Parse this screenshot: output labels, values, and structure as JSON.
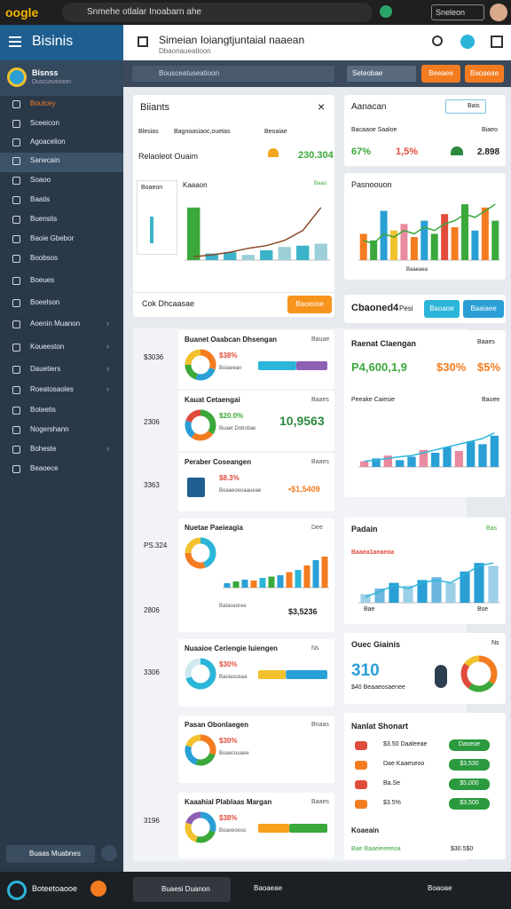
{
  "browser": {
    "logo": "oogle",
    "search": "Snmehe otlalar Inoabarn ahe",
    "button": "Sneleon"
  },
  "sidebar": {
    "title": "Bisinis",
    "user_name": "Bisnss",
    "user_sub": "Duscusvinoon",
    "items": [
      "Boulcey",
      "Sceeicon",
      "Agoacelion",
      "Sanecain",
      "Soaoo",
      "Baatis",
      "Buenslis",
      "Baoie Gbebor",
      "Boobsos",
      "Boeues",
      "Boeelson",
      "Aoenin Muanon",
      "Koueeston",
      "Dauetiers",
      "Roeatosaoles",
      "Boteetis",
      "Nogershann",
      "Boheste",
      "Beaoece"
    ],
    "footer": "Buaas Muabnes"
  },
  "header": {
    "title": "Simeian Ioiangtjuntaial naaean",
    "subtitle": "Dbaonaueatioon"
  },
  "filters": {
    "search": "Bousceatuseatioon",
    "select": "Seteobae",
    "buttons": [
      "Beeaee",
      "Baoaeae"
    ]
  },
  "main": {
    "title": "Biiants",
    "cols": [
      "Blesias",
      "Bagnoasiaoc,ouetas",
      "Beoaiae"
    ],
    "row_label": "Relaoleot Ouaim",
    "row_value": "230.304",
    "legend": "Boaeon",
    "chart_title": "Kaaaon",
    "chart_note": "Baao",
    "footer": "Cok Dhcaasae",
    "footer_button": "Baoeose",
    "chart": {
      "type": "bar-line",
      "ylim": [
        0,
        100
      ],
      "bars": [
        80,
        10,
        12,
        8,
        15,
        20,
        22,
        25
      ],
      "bar_colors": [
        "#3aa83a",
        "#3bb3c8",
        "#3bb3c8",
        "#9ccfd8",
        "#3bb3c8",
        "#9ccfd8",
        "#3bb3c8",
        "#9ccfd8"
      ],
      "line": [
        5,
        8,
        12,
        18,
        22,
        30,
        45,
        80
      ],
      "line_color": "#8b4a2a"
    }
  },
  "right_top": {
    "title": "Aanacan",
    "input": "Bais",
    "label": "Bacaaoe Saaloe",
    "sub": "Biaeo",
    "pct_a": "67%",
    "pct_b": "1,5%",
    "value": "2.898"
  },
  "right_chart": {
    "title": "Pasnoouon",
    "note": "Baaeaea",
    "chart": {
      "type": "bar-line",
      "ylim": [
        0,
        100
      ],
      "bars": [
        40,
        30,
        75,
        45,
        55,
        35,
        60,
        40,
        70,
        50,
        85,
        45,
        80,
        60
      ],
      "bar_colors": [
        "#f47c20",
        "#3aa83a",
        "#2a9fd6",
        "#f2c12e",
        "#e98aa0",
        "#f47c20",
        "#2a9fd6",
        "#3aa83a",
        "#e04c3c",
        "#f47c20",
        "#3aa83a",
        "#2a9fd6",
        "#f47c20",
        "#3aa83a"
      ],
      "line": [
        30,
        25,
        40,
        35,
        45,
        40,
        50,
        45,
        55,
        60,
        70,
        65,
        75,
        85
      ],
      "line_color": "#3aa83a"
    }
  },
  "right_bar": {
    "title": "Cbaoned4",
    "label": "Pesi",
    "buttons": [
      "Baoaoe",
      "Baaiaee"
    ]
  },
  "row_labels": [
    "$3036",
    "2306",
    "3363",
    "PS.324",
    "2806",
    "3306",
    "3196"
  ],
  "cards": [
    {
      "title": "Buanet Oaabcan Dhsengan",
      "tag": "Bauae",
      "pct": "$38%",
      "sub": "Boiaeean",
      "donut": {
        "type": "donut",
        "segments": [
          30,
          25,
          20,
          25
        ],
        "colors": [
          "#f47c20",
          "#2a9fd6",
          "#3aa83a",
          "#f2c12e"
        ]
      },
      "bar": {
        "type": "stack",
        "xlim": [
          0,
          100
        ],
        "segments": [
          55,
          45
        ],
        "colors": [
          "#2bb5d8",
          "#8e5fb5"
        ]
      }
    },
    {
      "title": "Kauat Cetaengai",
      "tag": "Baaes",
      "pct": "$20.0%",
      "sub": "Buaet Dobotiae",
      "value": "10,9563",
      "donut": {
        "type": "donut",
        "segments": [
          35,
          25,
          20,
          20
        ],
        "colors": [
          "#3aa83a",
          "#f47c20",
          "#2a9fd6",
          "#e04c3c"
        ]
      }
    },
    {
      "title": "Peraber Coseangen",
      "tag": "Baaes",
      "pct": "$8.3%",
      "sub": "Boaaeoeoaaueae",
      "value": "•$1,5409"
    },
    {
      "title": "Nuetae Paeieagia",
      "tag": "Dee",
      "sub": "Bataseoree",
      "value": "$3,5236",
      "donut": {
        "type": "donut",
        "segments": [
          45,
          30,
          25
        ],
        "colors": [
          "#2bb5d8",
          "#f47c20",
          "#f2c12e"
        ]
      },
      "chart": {
        "type": "bar-line",
        "ylim": [
          0,
          100
        ],
        "bars": [
          10,
          14,
          18,
          16,
          22,
          25,
          28,
          35,
          40,
          50,
          62,
          70
        ],
        "bar_colors": [
          "#2a9fd6",
          "#3aa83a",
          "#2a9fd6",
          "#f47c20",
          "#2bb5d8",
          "#3aa83a",
          "#2a9fd6",
          "#f47c20",
          "#2bb5d8",
          "#f47c20",
          "#2a9fd6",
          "#f47c20"
        ]
      }
    },
    {
      "title": "Nuaaioe Ceriengie Iuiengen",
      "tag": "Ns",
      "pct": "$30%",
      "sub": "Baoiasceaa",
      "donut": {
        "type": "donut",
        "segments": [
          70,
          30
        ],
        "colors": [
          "#2bb5d8",
          "#cfe9f0"
        ]
      },
      "bar": {
        "type": "stack",
        "xlim": [
          0,
          100
        ],
        "segments": [
          40,
          60
        ],
        "colors": [
          "#f2c12e",
          "#2a9fd6"
        ]
      }
    },
    {
      "title": "Pasan Obonlaegen",
      "tag": "Bnaas",
      "pct": "$30%",
      "sub": "Boaecouaee",
      "donut": {
        "type": "donut",
        "segments": [
          30,
          25,
          25,
          20
        ],
        "colors": [
          "#f47c20",
          "#3aa83a",
          "#2a9fd6",
          "#f2c12e"
        ]
      }
    },
    {
      "title": "Kaaahial Plablaas Margan",
      "tag": "Baaes",
      "pct": "$38%",
      "sub": "Boaoeoeso",
      "donut": {
        "type": "donut",
        "segments": [
          30,
          25,
          25,
          20
        ],
        "colors": [
          "#2a9fd6",
          "#3aa83a",
          "#f2c12e",
          "#8e5fb5"
        ]
      },
      "bar": {
        "type": "stack",
        "xlim": [
          0,
          100
        ],
        "segments": [
          45,
          55
        ],
        "colors": [
          "#f7a21b",
          "#3aa83a"
        ]
      }
    }
  ],
  "right_cards": [
    {
      "title": "Raenat Claengan",
      "tag": "Baaes",
      "value": "P4,600,1,9",
      "pct_a": "$30%",
      "pct_b": "$5%",
      "chart_title": "Peeake Caiesie",
      "chart_tag": "Bauee",
      "chart": {
        "type": "bar-line",
        "ylim": [
          0,
          100
        ],
        "bars": [
          10,
          15,
          20,
          12,
          18,
          30,
          25,
          35,
          28,
          45,
          40,
          55
        ],
        "bar_colors": [
          "#e98aa0",
          "#2a9fd6",
          "#e98aa0",
          "#2a9fd6",
          "#2a9fd6",
          "#e98aa0",
          "#2a9fd6",
          "#2a9fd6",
          "#e98aa0",
          "#2a9fd6",
          "#2a9fd6",
          "#2a9fd6"
        ],
        "line": [
          10,
          12,
          15,
          18,
          20,
          25,
          30,
          35,
          40,
          45,
          50,
          60
        ],
        "line_color": "#2bb5d8"
      }
    },
    {
      "title": "Padain",
      "tag": "Bas",
      "note": "Baaea1aeaeoa",
      "foot_a": "Bae",
      "foot_b": "Bse",
      "chart": {
        "type": "bar-line",
        "ylim": [
          0,
          100
        ],
        "bars": [
          15,
          25,
          35,
          30,
          40,
          45,
          35,
          55,
          70,
          65
        ],
        "bar_colors": [
          "#9ccfe8",
          "#6bb6e0",
          "#2a9fd6",
          "#9ccfe8",
          "#2a9fd6",
          "#6bb6e0",
          "#9ccfe8",
          "#2a9fd6",
          "#2a9fd6",
          "#9ccfe8"
        ],
        "line": [
          10,
          20,
          30,
          25,
          35,
          40,
          35,
          50,
          65,
          70
        ],
        "line_color": "#2bb5d8"
      }
    },
    {
      "title": "Ouec Giainis",
      "tag": "Ns",
      "value": "310",
      "sub": "$40 Beaaeosaenee",
      "donut": {
        "type": "donut",
        "segments": [
          35,
          25,
          25,
          15
        ],
        "colors": [
          "#f47c20",
          "#3aa83a",
          "#e04c3c",
          "#f2c12e"
        ]
      }
    },
    {
      "title": "Nanlat Shonart",
      "rows": [
        [
          "$3.50 Daaleeae",
          "Daseoe"
        ],
        [
          "Dae Kaaeseoo",
          "$3,530"
        ],
        [
          "Ba.Se",
          "$5,000"
        ],
        [
          "$3.5%",
          "$3,500"
        ]
      ],
      "footer": "Koaeain",
      "foot_a": "Bae Baaeieeeeoa",
      "foot_b": "$30.5$0"
    }
  ],
  "bottom": {
    "brand": "Boteetoaooe",
    "active": "Buaesi Duanon",
    "item": "Baoaeae",
    "right": "Boaoae"
  }
}
